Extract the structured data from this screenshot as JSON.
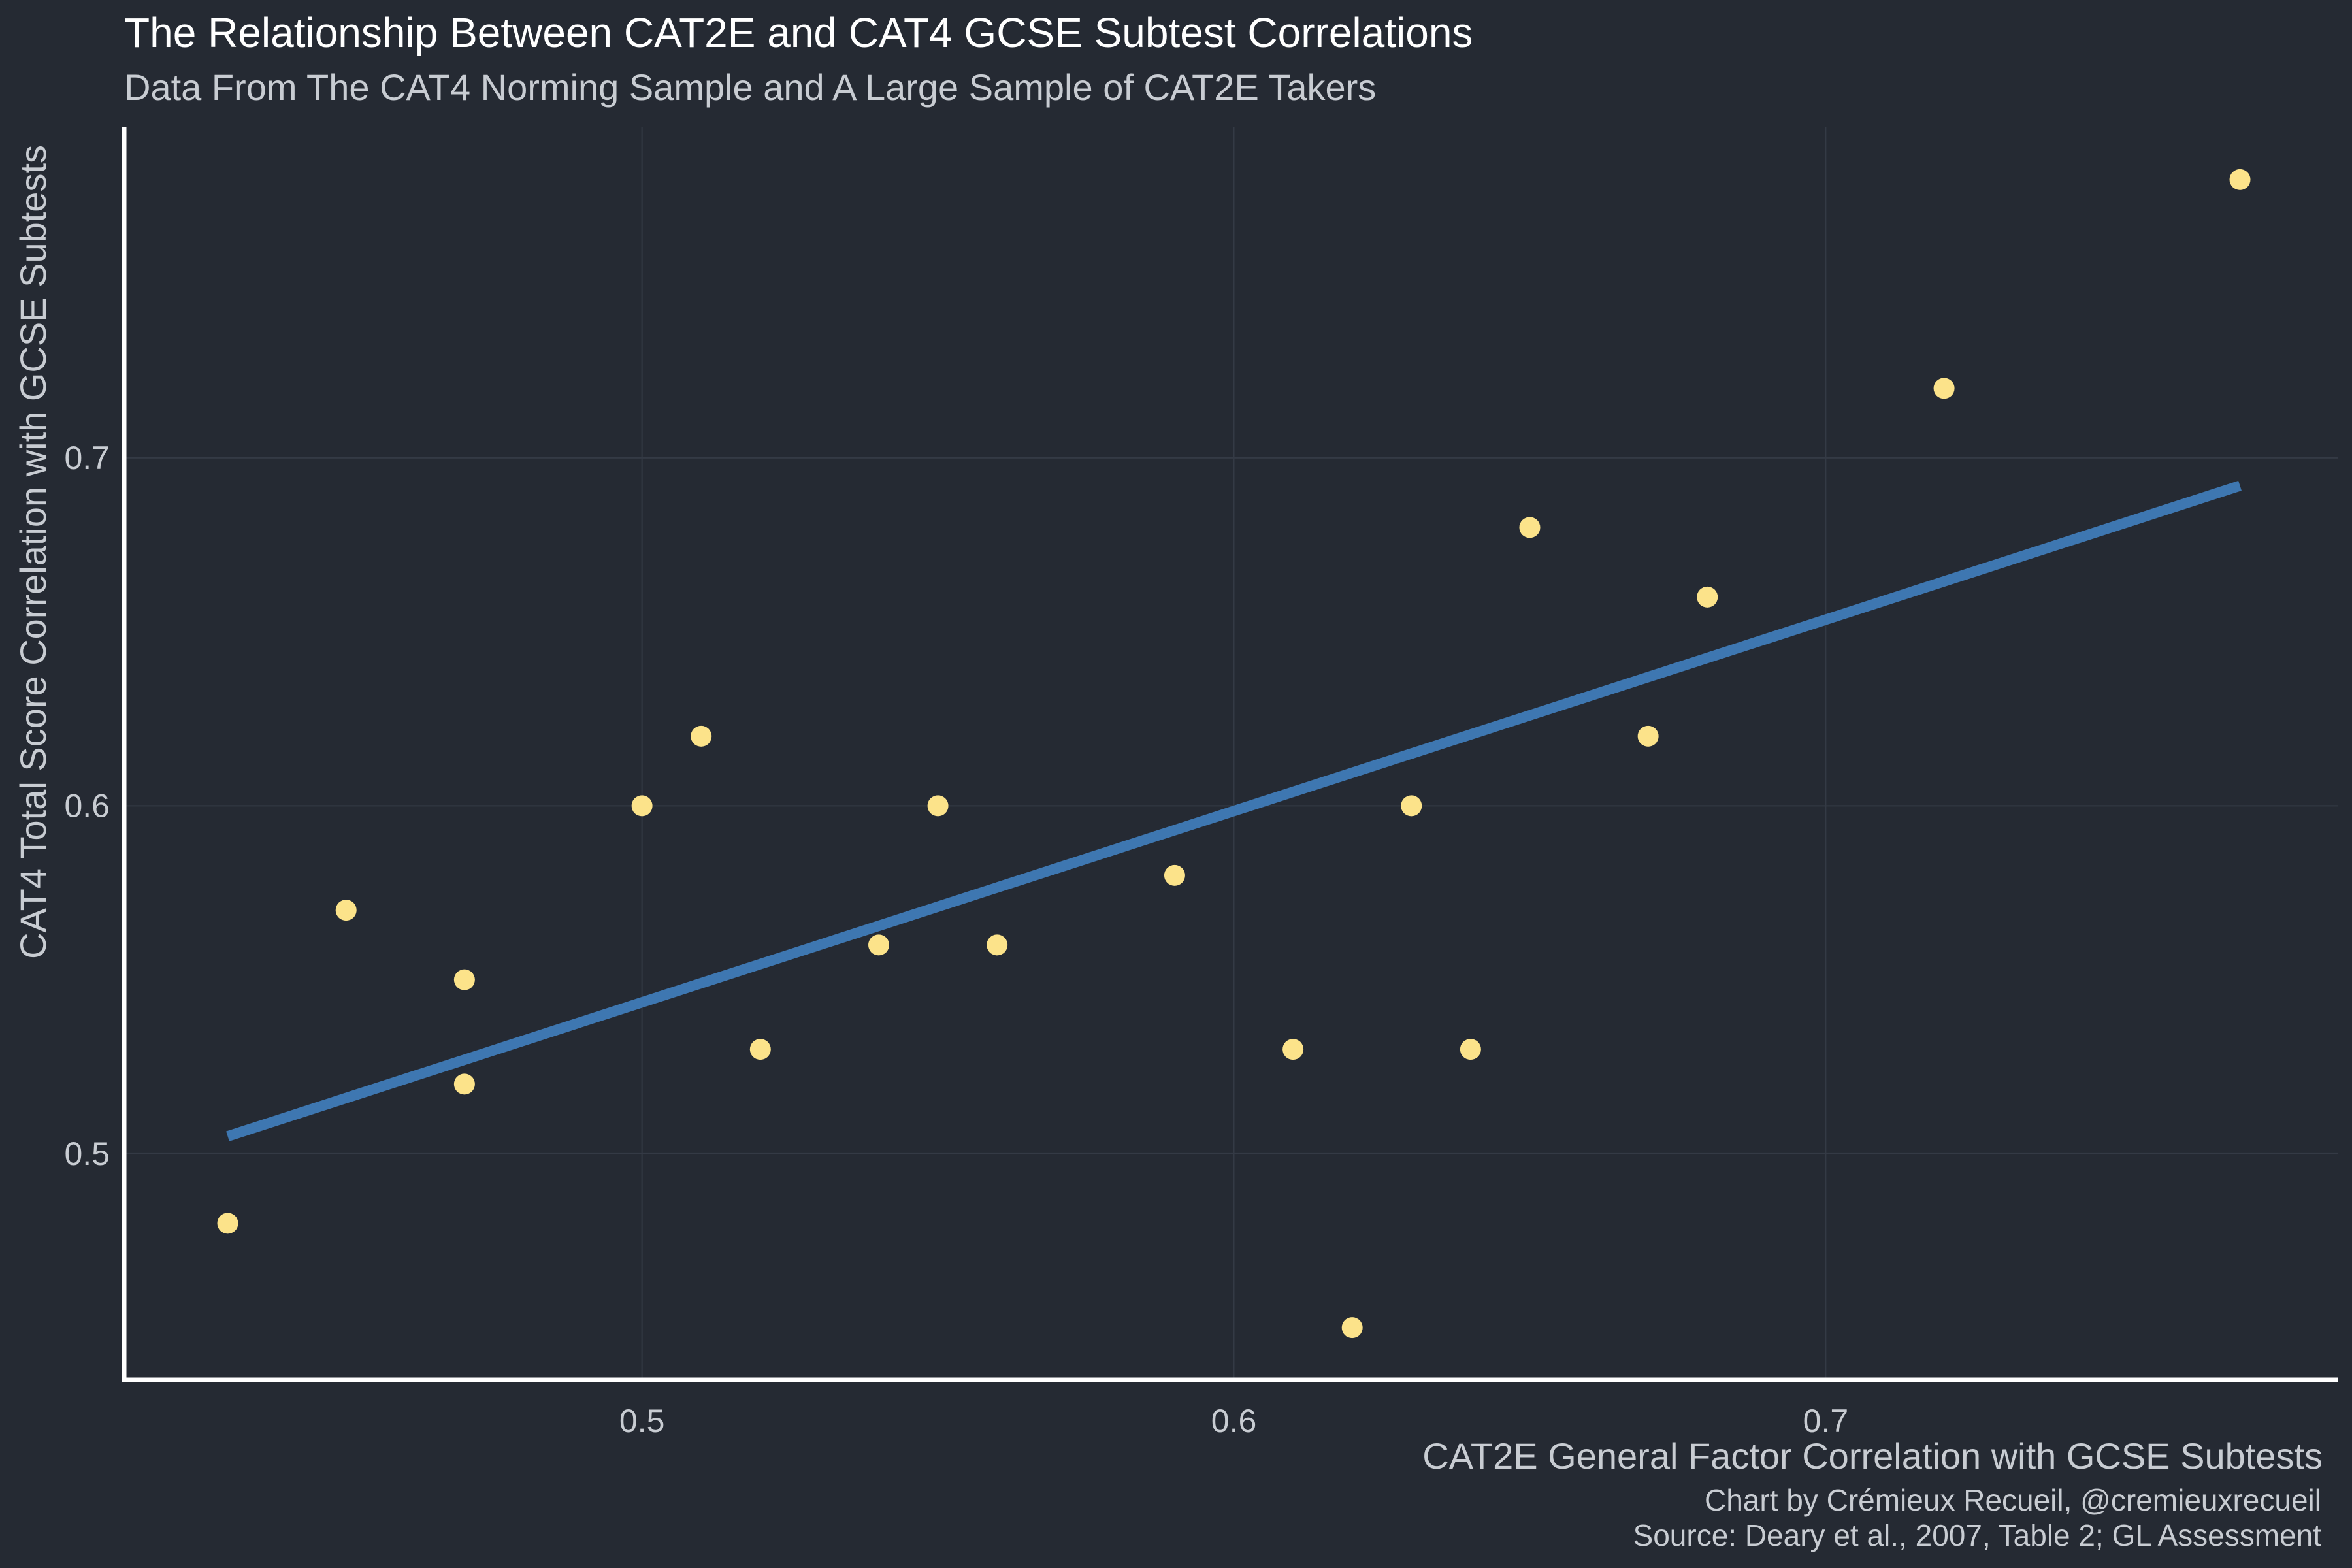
{
  "chart_data": {
    "type": "scatter",
    "title": "The Relationship Between CAT2E and CAT4 GCSE Subtest Correlations",
    "subtitle": "Data From The CAT4 Norming Sample and A Large Sample of CAT2E Takers",
    "xlabel": "CAT2E General Factor Correlation with GCSE Subtests",
    "ylabel": "CAT4 Total Score Correlation with GCSE Subtests",
    "captions": [
      "Chart by Crémieux Recueil, @cremieuxrecueil",
      "Source: Deary et al., 2007, Table 2; GL Assessment"
    ],
    "xlim": [
      0.4125,
      0.7865
    ],
    "ylim": [
      0.435,
      0.795
    ],
    "x_ticks": [
      0.5,
      0.6,
      0.7
    ],
    "y_ticks": [
      0.5,
      0.6,
      0.7
    ],
    "x_tick_labels": [
      "0.5",
      "0.6",
      "0.7"
    ],
    "y_tick_labels": [
      "0.5",
      "0.6",
      "0.7"
    ],
    "grid": true,
    "point_color": "#fce38a",
    "trend_color": "#3e77b1",
    "background": "#252a33",
    "points": [
      {
        "x": 0.43,
        "y": 0.48
      },
      {
        "x": 0.45,
        "y": 0.57
      },
      {
        "x": 0.47,
        "y": 0.55
      },
      {
        "x": 0.47,
        "y": 0.52
      },
      {
        "x": 0.5,
        "y": 0.6
      },
      {
        "x": 0.51,
        "y": 0.62
      },
      {
        "x": 0.52,
        "y": 0.53
      },
      {
        "x": 0.54,
        "y": 0.56
      },
      {
        "x": 0.55,
        "y": 0.6
      },
      {
        "x": 0.56,
        "y": 0.56
      },
      {
        "x": 0.59,
        "y": 0.58
      },
      {
        "x": 0.61,
        "y": 0.53
      },
      {
        "x": 0.62,
        "y": 0.45
      },
      {
        "x": 0.63,
        "y": 0.6
      },
      {
        "x": 0.64,
        "y": 0.53
      },
      {
        "x": 0.65,
        "y": 0.68
      },
      {
        "x": 0.67,
        "y": 0.62
      },
      {
        "x": 0.68,
        "y": 0.66
      },
      {
        "x": 0.72,
        "y": 0.72
      },
      {
        "x": 0.77,
        "y": 0.78
      }
    ],
    "trendline": {
      "x": [
        0.43,
        0.77
      ],
      "y": [
        0.505,
        0.692
      ]
    }
  }
}
